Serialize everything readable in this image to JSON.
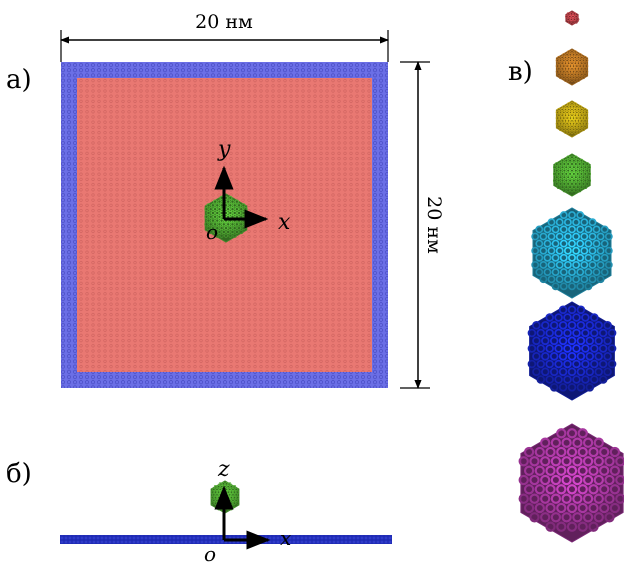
{
  "panels": {
    "a": {
      "label": "а)",
      "width_text": "20 нм",
      "height_text": "20 нм"
    },
    "b": {
      "label": "б)"
    },
    "v": {
      "label": "в)"
    }
  },
  "axes": {
    "top": {
      "x": "x",
      "y": "y",
      "origin": "o"
    },
    "side": {
      "x": "x",
      "z": "z",
      "origin": "o"
    }
  },
  "colors": {
    "sheet_fill": "#e97872",
    "sheet_border": "#6b6fe6",
    "side_sheet": "#1f2bb5",
    "shell_red": "#d94d55",
    "shell_orange": "#d98a2b",
    "shell_yellow": "#e0c21a",
    "shell_green": "#5cc23a",
    "shell_cyan": "#2bb5de",
    "shell_blue": "#1a2ad4",
    "shell_magenta": "#b03aa8"
  },
  "shells": [
    "shell_red",
    "shell_orange",
    "shell_yellow",
    "shell_green",
    "shell_cyan",
    "shell_blue",
    "shell_magenta"
  ]
}
